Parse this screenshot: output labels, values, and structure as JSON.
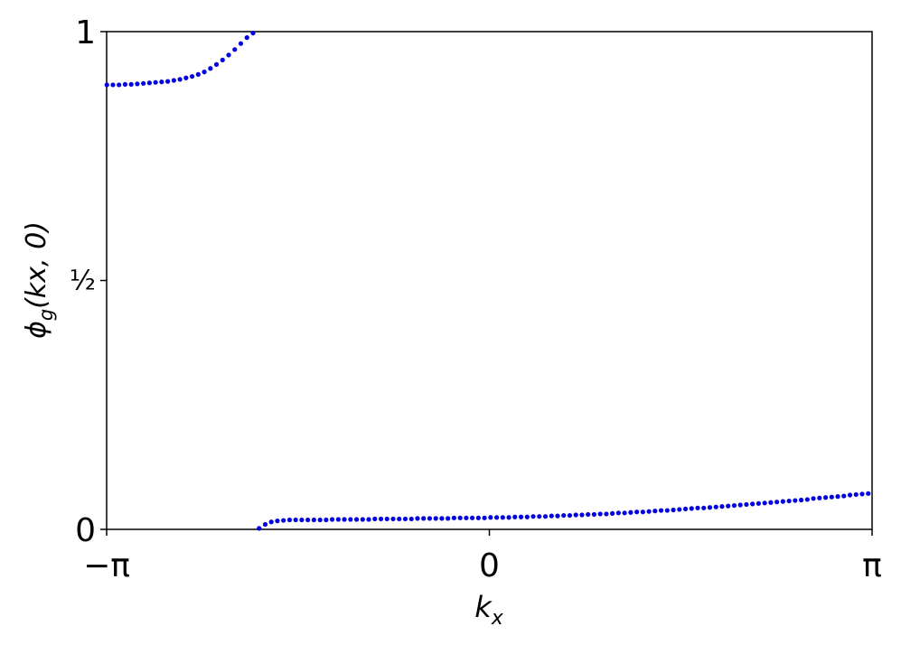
{
  "chart_data": {
    "type": "scatter",
    "xlabel": {
      "text": "k",
      "subscript": "x"
    },
    "ylabel": {
      "text": "ϕ",
      "subscript": "g",
      "suffix": "(kx, 0)"
    },
    "xlim": [
      -3.141592653589793,
      3.141592653589793
    ],
    "ylim": [
      0,
      1
    ],
    "xticks": [
      {
        "value": -3.141592653589793,
        "label": "−π"
      },
      0,
      {
        "value": 3.141592653589793,
        "label": "π"
      }
    ],
    "yticks": [
      0,
      {
        "value": 0.5,
        "label": "½"
      },
      1
    ],
    "series": [
      {
        "color": "#0000e0",
        "x": [
          -3.14,
          -3.09,
          -3.04,
          -2.99,
          -2.94,
          -2.89,
          -2.84,
          -2.79,
          -2.74,
          -2.69,
          -2.64,
          -2.59,
          -2.54,
          -2.49,
          -2.44,
          -2.39,
          -2.34,
          -2.29,
          -2.24,
          -2.19,
          -2.14,
          -2.09,
          -2.04,
          -1.99,
          -1.94
        ],
        "values": [
          0.893,
          0.893,
          0.893,
          0.894,
          0.894,
          0.895,
          0.896,
          0.897,
          0.898,
          0.899,
          0.9,
          0.902,
          0.904,
          0.907,
          0.91,
          0.914,
          0.919,
          0.926,
          0.934,
          0.943,
          0.953,
          0.964,
          0.976,
          0.988,
          0.997
        ]
      },
      {
        "color": "#0000e0",
        "x": [
          -1.89,
          -1.84,
          -1.79,
          -1.74,
          -1.69,
          -1.64,
          -1.59,
          -1.54,
          -1.49,
          -1.44,
          -1.39,
          -1.34,
          -1.29,
          -1.24,
          -1.19,
          -1.14,
          -1.09,
          -1.04,
          -0.99,
          -0.94,
          -0.89,
          -0.84,
          -0.79,
          -0.74,
          -0.69,
          -0.64,
          -0.59,
          -0.54,
          -0.49,
          -0.44,
          -0.39,
          -0.34,
          -0.29,
          -0.24,
          -0.19,
          -0.14,
          -0.09,
          -0.04,
          0.01,
          0.06,
          0.11,
          0.16,
          0.21,
          0.26,
          0.31,
          0.36,
          0.41,
          0.46,
          0.51,
          0.56,
          0.61,
          0.66,
          0.71,
          0.76,
          0.81,
          0.86,
          0.91,
          0.96,
          1.01,
          1.06,
          1.11,
          1.16,
          1.21,
          1.26,
          1.31,
          1.36,
          1.41,
          1.46,
          1.51,
          1.56,
          1.61,
          1.66,
          1.71,
          1.76,
          1.81,
          1.86,
          1.91,
          1.96,
          2.01,
          2.06,
          2.11,
          2.16,
          2.21,
          2.26,
          2.31,
          2.36,
          2.41,
          2.46,
          2.51,
          2.56,
          2.61,
          2.66,
          2.71,
          2.76,
          2.81,
          2.86,
          2.91,
          2.96,
          3.01,
          3.06,
          3.11
        ],
        "values": [
          0.002,
          0.01,
          0.015,
          0.017,
          0.018,
          0.019,
          0.019,
          0.019,
          0.019,
          0.019,
          0.019,
          0.019,
          0.02,
          0.02,
          0.02,
          0.02,
          0.02,
          0.02,
          0.02,
          0.021,
          0.021,
          0.021,
          0.021,
          0.021,
          0.021,
          0.021,
          0.022,
          0.022,
          0.022,
          0.022,
          0.022,
          0.022,
          0.023,
          0.023,
          0.023,
          0.023,
          0.023,
          0.023,
          0.024,
          0.024,
          0.024,
          0.024,
          0.025,
          0.025,
          0.025,
          0.026,
          0.026,
          0.026,
          0.027,
          0.027,
          0.028,
          0.028,
          0.029,
          0.029,
          0.03,
          0.03,
          0.031,
          0.031,
          0.032,
          0.033,
          0.033,
          0.034,
          0.035,
          0.035,
          0.036,
          0.037,
          0.038,
          0.038,
          0.039,
          0.04,
          0.041,
          0.042,
          0.043,
          0.043,
          0.044,
          0.045,
          0.046,
          0.047,
          0.048,
          0.049,
          0.05,
          0.051,
          0.052,
          0.053,
          0.054,
          0.055,
          0.056,
          0.057,
          0.058,
          0.059,
          0.06,
          0.062,
          0.063,
          0.064,
          0.065,
          0.066,
          0.067,
          0.069,
          0.07,
          0.071,
          0.072
        ]
      }
    ]
  }
}
